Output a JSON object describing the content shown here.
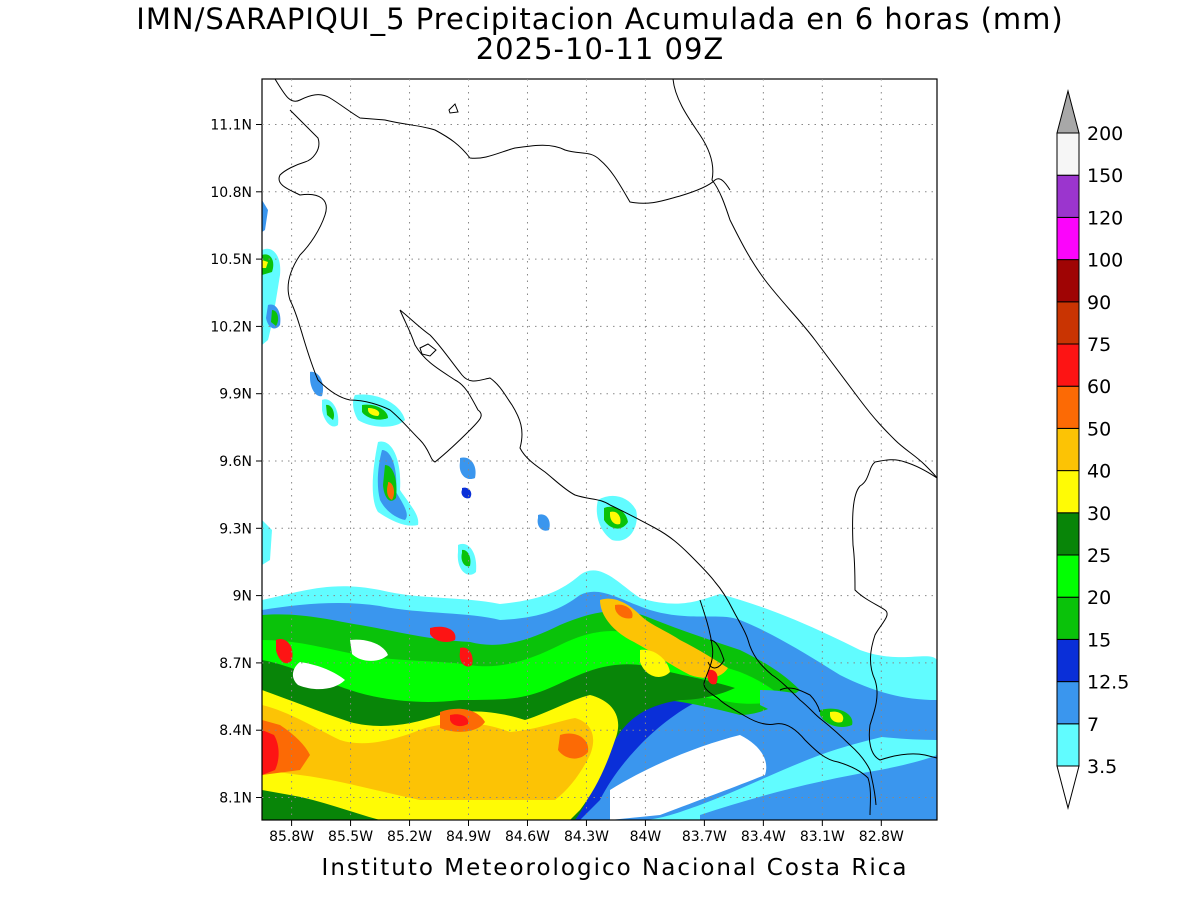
{
  "title": {
    "line1": "IMN/SARAPIQUI_5 Precipitacion Acumulada en 6 horas (mm)",
    "line2": "2025-10-11 09Z"
  },
  "credit": "Instituto Meteorologico Nacional Costa Rica",
  "axes": {
    "lat_labels": [
      "11.1N",
      "10.8N",
      "10.5N",
      "10.2N",
      "9.9N",
      "9.6N",
      "9.3N",
      "9N",
      "8.7N",
      "8.4N",
      "8.1N"
    ],
    "lat_values": [
      11.1,
      10.8,
      10.5,
      10.2,
      9.9,
      9.6,
      9.3,
      9.0,
      8.7,
      8.4,
      8.1
    ],
    "lon_labels": [
      "85.8W",
      "85.5W",
      "85.2W",
      "84.9W",
      "84.6W",
      "84.3W",
      "84W",
      "83.7W",
      "83.4W",
      "83.1W",
      "82.8W"
    ],
    "lon_values": [
      -85.8,
      -85.5,
      -85.2,
      -84.9,
      -84.6,
      -84.3,
      -84.0,
      -83.7,
      -83.4,
      -83.1,
      -82.8
    ],
    "grid": true
  },
  "colorbar": {
    "labels": [
      "3.5",
      "7",
      "12.5",
      "15",
      "20",
      "25",
      "30",
      "40",
      "50",
      "60",
      "75",
      "90",
      "100",
      "120",
      "150",
      "200"
    ],
    "colors": [
      "#61fcff",
      "#3a96ee",
      "#0a2fd8",
      "#0ac20a",
      "#02ff02",
      "#088508",
      "#fffb05",
      "#fcc305",
      "#fc6a05",
      "#fd1414",
      "#c93402",
      "#9f0404",
      "#fb05fb",
      "#9b35ce",
      "#f6f6f6",
      "#a8a8a8"
    ],
    "arrow_top_color": "#a8a8a8",
    "arrow_bottom_color": "#ffffff"
  }
}
